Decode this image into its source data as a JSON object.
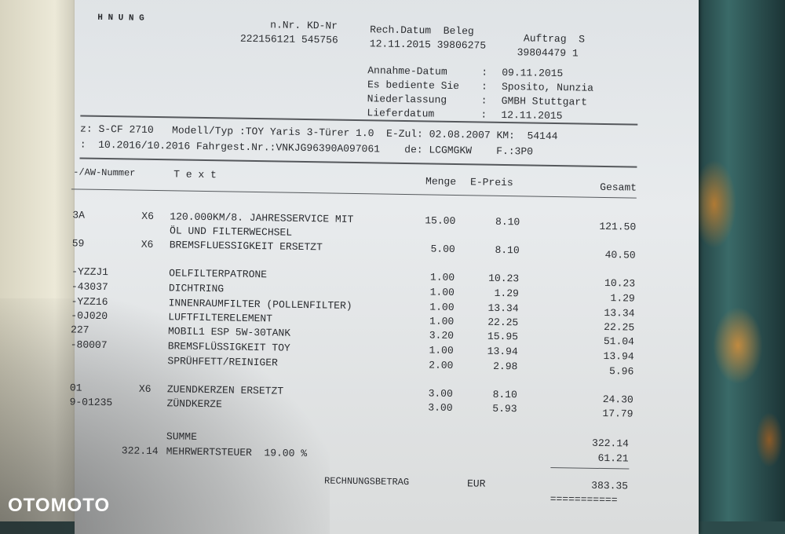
{
  "header": {
    "title_fragment": "H N U N G",
    "labels_1": "n.Nr. KD-Nr",
    "values_1": "222156121 545756",
    "labels_2": "Rech.Datum  Beleg",
    "values_2": "12.11.2015 39806275",
    "auftrag_label": "Auftrag  S",
    "auftrag_value": "39804479 1",
    "info": [
      {
        "label": "Annahme-Datum",
        "value": "09.11.2015"
      },
      {
        "label": "Es bediente Sie",
        "value": "Sposito, Nunzia"
      },
      {
        "label": "Niederlassung",
        "value": "GMBH Stuttgart"
      },
      {
        "label": "Lieferdatum",
        "value": "12.11.2015"
      }
    ]
  },
  "vehicle": {
    "line1": "z: S-CF 2710   Modell/Typ :TOY Yaris 3-Türer 1.0  E-Zul: 02.08.2007 KM:  54144",
    "line2": ":  10.2016/10.2016 Fahrgest.Nr.:VNKJG96390A097061    de: LCGMGKW    F.:3P0"
  },
  "columns": {
    "nummer": "-/AW-Nummer",
    "text": "T e x t",
    "menge": "Menge",
    "epreis": "E-Preis",
    "gesamt": "Gesamt"
  },
  "items": [
    {
      "code": "3A",
      "x": "X6",
      "text": "120.000KM/8. JAHRESSERVICE MIT",
      "menge": "15.00",
      "epreis": "8.10",
      "gesamt": "121.50"
    },
    {
      "code": "",
      "x": "",
      "text": "ÖL UND FILTERWECHSEL",
      "menge": "",
      "epreis": "",
      "gesamt": ""
    },
    {
      "code": "59",
      "x": "X6",
      "text": "BREMSFLUESSIGKEIT ERSETZT",
      "menge": "5.00",
      "epreis": "8.10",
      "gesamt": "40.50"
    },
    {
      "code": "-YZZJ1",
      "x": "",
      "text": "OELFILTERPATRONE",
      "menge": "1.00",
      "epreis": "10.23",
      "gesamt": "10.23"
    },
    {
      "code": "-43037",
      "x": "",
      "text": "DICHTRING",
      "menge": "1.00",
      "epreis": "1.29",
      "gesamt": "1.29"
    },
    {
      "code": "-YZZ16",
      "x": "",
      "text": "INNENRAUMFILTER (POLLENFILTER)",
      "menge": "1.00",
      "epreis": "13.34",
      "gesamt": "13.34"
    },
    {
      "code": "-0J020",
      "x": "",
      "text": "LUFTFILTERELEMENT",
      "menge": "1.00",
      "epreis": "22.25",
      "gesamt": "22.25"
    },
    {
      "code": "227",
      "x": "",
      "text": "MOBIL1 ESP 5W-30TANK",
      "menge": "3.20",
      "epreis": "15.95",
      "gesamt": "51.04"
    },
    {
      "code": "-80007",
      "x": "",
      "text": "BREMSFLÜSSIGKEIT TOY",
      "menge": "1.00",
      "epreis": "13.94",
      "gesamt": "13.94"
    },
    {
      "code": "",
      "x": "",
      "text": "SPRÜHFETT/REINIGER",
      "menge": "2.00",
      "epreis": "2.98",
      "gesamt": "5.96"
    },
    {
      "code": "01",
      "x": "X6",
      "text": "ZUENDKERZEN ERSETZT",
      "menge": "3.00",
      "epreis": "8.10",
      "gesamt": "24.30"
    },
    {
      "code": "9-01235",
      "x": "",
      "text": "ZÜNDKERZE",
      "menge": "3.00",
      "epreis": "5.93",
      "gesamt": "17.79"
    }
  ],
  "totals": {
    "summe_label": "SUMME",
    "summe": "322.14",
    "mwst_base": "322.14",
    "mwst_label": "MEHRWERTSTEUER  19.00 %",
    "mwst": "61.21",
    "betrag_label": "RECHNUNGSBETRAG",
    "currency": "EUR",
    "betrag": "383.35",
    "double_rule": "==========="
  },
  "watermark": "OTOMOTO"
}
